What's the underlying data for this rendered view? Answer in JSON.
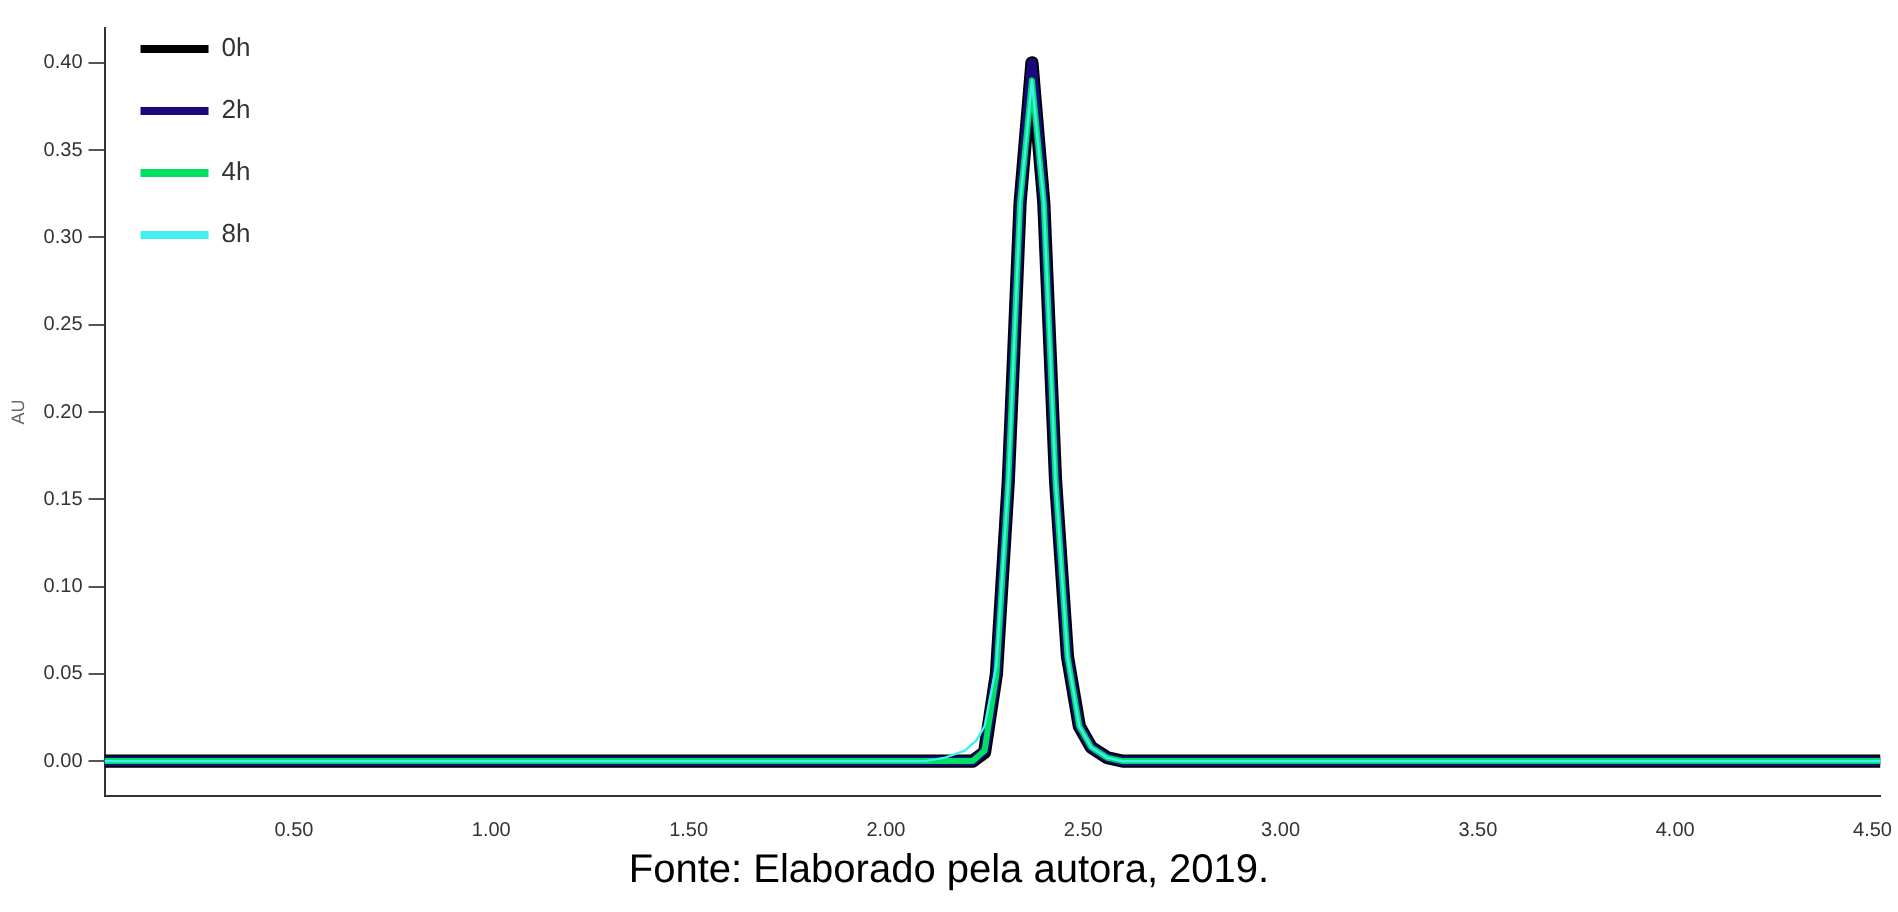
{
  "chart_data": {
    "type": "line",
    "ylabel": "AU",
    "annotations": [
      "Fonte: Elaborado pela autora, 2019."
    ],
    "xlim": [
      0.02,
      4.52
    ],
    "ylim": [
      -0.02,
      0.42
    ],
    "xticks": [
      {
        "value": 0.5,
        "label": "0.50"
      },
      {
        "value": 1,
        "label": "1.00"
      },
      {
        "value": 1.5,
        "label": "1.50"
      },
      {
        "value": 2,
        "label": "2.00"
      },
      {
        "value": 2.5,
        "label": "2.50"
      },
      {
        "value": 3,
        "label": "3.00"
      },
      {
        "value": 3.5,
        "label": "3.50"
      },
      {
        "value": 4,
        "label": "4.00"
      },
      {
        "value": 4.5,
        "label": "4.50"
      }
    ],
    "yticks": [
      {
        "value": 0,
        "label": "0.00"
      },
      {
        "value": 0.05,
        "label": "0.05"
      },
      {
        "value": 0.1,
        "label": "0.10"
      },
      {
        "value": 0.15,
        "label": "0.15"
      },
      {
        "value": 0.2,
        "label": "0.20"
      },
      {
        "value": 0.25,
        "label": "0.25"
      },
      {
        "value": 0.3,
        "label": "0.30"
      },
      {
        "value": 0.35,
        "label": "0.35"
      },
      {
        "value": 0.4,
        "label": "0.40"
      }
    ],
    "grid": false,
    "legend": "top left",
    "marker": "none",
    "line_style": "solid",
    "series": [
      {
        "name": "0h",
        "color": "#000000",
        "x": [
          0.02,
          2.22,
          2.25,
          2.28,
          2.31,
          2.34,
          2.37,
          2.4,
          2.43,
          2.46,
          2.49,
          2.52,
          2.56,
          2.6,
          4.52
        ],
        "values": [
          0,
          0,
          0.005,
          0.05,
          0.16,
          0.32,
          0.4,
          0.32,
          0.16,
          0.06,
          0.02,
          0.008,
          0.002,
          0,
          0
        ]
      },
      {
        "name": "2h",
        "color": "#1a0a80",
        "x": [
          0.02,
          2.22,
          2.25,
          2.28,
          2.31,
          2.34,
          2.37,
          2.4,
          2.43,
          2.46,
          2.49,
          2.52,
          2.56,
          2.6,
          4.52
        ],
        "values": [
          0,
          0,
          0.006,
          0.05,
          0.16,
          0.32,
          0.4,
          0.32,
          0.16,
          0.06,
          0.02,
          0.008,
          0.002,
          0,
          0
        ]
      },
      {
        "name": "4h",
        "color": "#00e060",
        "x": [
          0.02,
          2.22,
          2.25,
          2.28,
          2.31,
          2.34,
          2.37,
          2.4,
          2.43,
          2.46,
          2.49,
          2.52,
          2.56,
          2.6,
          4.52
        ],
        "values": [
          0,
          0,
          0.006,
          0.05,
          0.16,
          0.32,
          0.39,
          0.32,
          0.16,
          0.06,
          0.02,
          0.008,
          0.002,
          0,
          0
        ]
      },
      {
        "name": "8h",
        "color": "#40f0f0",
        "x": [
          0.02,
          2.1,
          2.15,
          2.2,
          2.23,
          2.25,
          2.28,
          2.31,
          2.34,
          2.37,
          2.4,
          2.43,
          2.46,
          2.49,
          2.52,
          2.56,
          2.6,
          4.52
        ],
        "values": [
          0,
          0,
          0.002,
          0.006,
          0.012,
          0.02,
          0.055,
          0.16,
          0.32,
          0.39,
          0.32,
          0.16,
          0.06,
          0.02,
          0.008,
          0.002,
          0,
          0
        ]
      }
    ]
  }
}
